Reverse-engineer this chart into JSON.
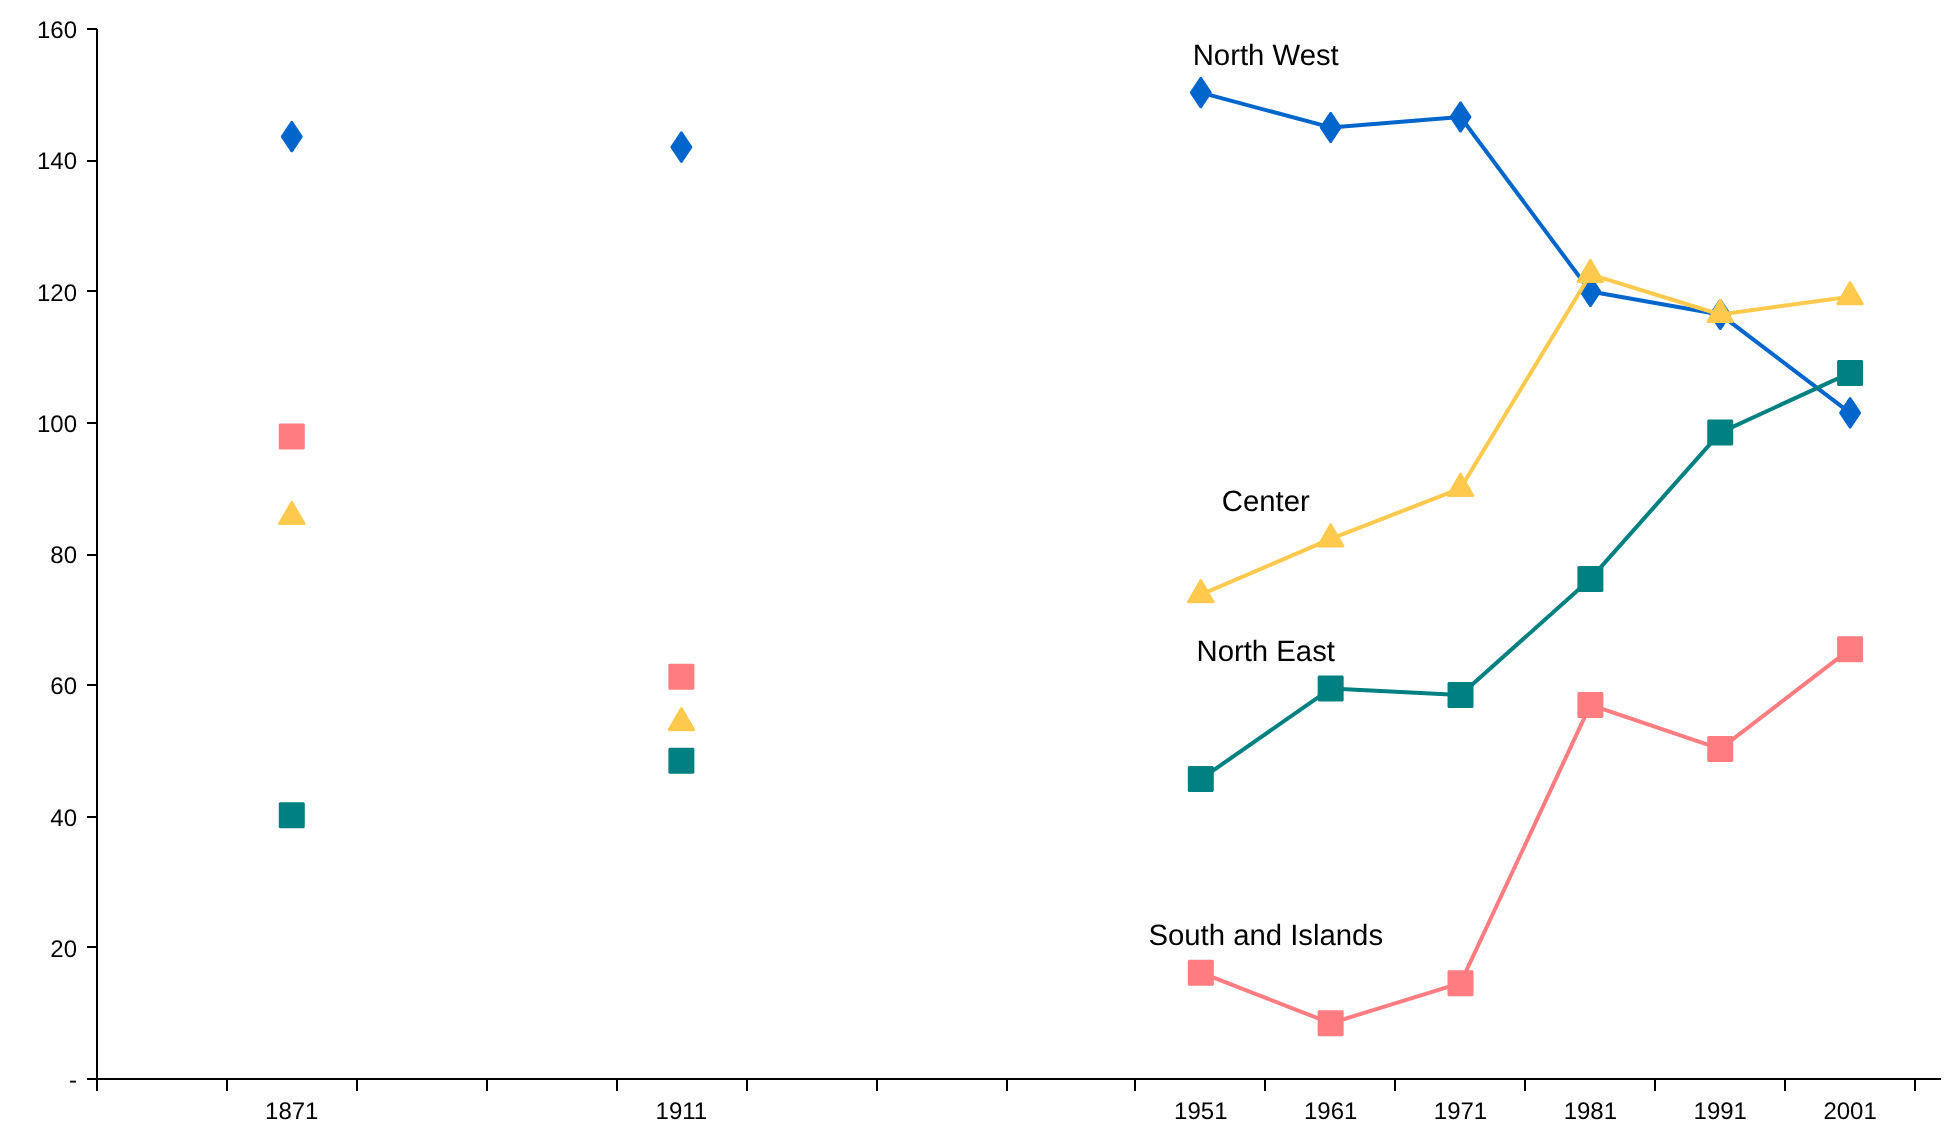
{
  "chart_data": {
    "type": "line",
    "categories": [
      null,
      "1871",
      null,
      null,
      "1911",
      null,
      null,
      null,
      "1951",
      "1961",
      "1971",
      "1981",
      "1991",
      "2001"
    ],
    "ylim": [
      0,
      160
    ],
    "yticks": [
      {
        "value": 0,
        "label": "-"
      },
      20,
      40,
      60,
      80,
      100,
      120,
      140,
      160
    ],
    "grid": false,
    "series": [
      {
        "name": "North West",
        "color": "#0066cc",
        "marker": "diamond",
        "values": [
          null,
          143.6,
          null,
          null,
          142,
          null,
          null,
          null,
          150.3,
          145,
          146.6,
          120,
          116.5,
          101.5
        ]
      },
      {
        "name": "Center",
        "color": "#ffc94d",
        "marker": "triangle",
        "values": [
          null,
          85.7,
          null,
          null,
          54.3,
          null,
          null,
          null,
          73.8,
          82.3,
          90,
          122.6,
          116.5,
          119.2
        ]
      },
      {
        "name": "North East",
        "color": "#008080",
        "marker": "square",
        "values": [
          null,
          40.2,
          null,
          null,
          48.5,
          null,
          null,
          null,
          45.7,
          59.5,
          58.5,
          76.2,
          98.5,
          107.6
        ]
      },
      {
        "name": "South and Islands",
        "color": "#ff7c80",
        "marker": "square",
        "values": [
          null,
          97.9,
          null,
          null,
          61.3,
          null,
          null,
          null,
          16.2,
          8.5,
          14.6,
          57,
          50.3,
          65.5
        ]
      }
    ]
  }
}
